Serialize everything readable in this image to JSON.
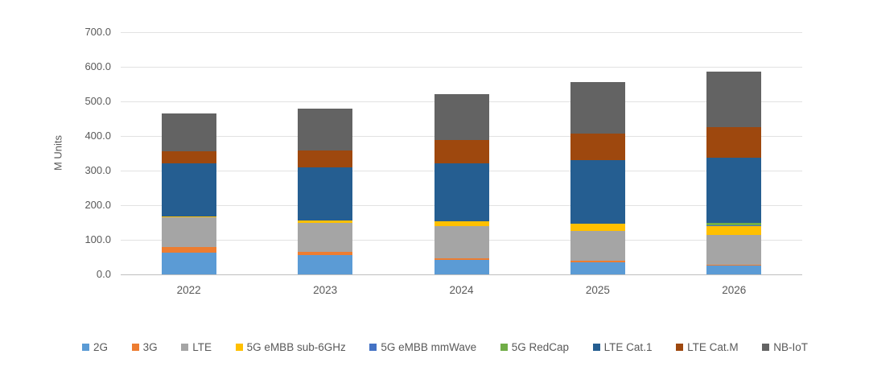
{
  "chart_data": {
    "type": "bar",
    "stacked": true,
    "title": "",
    "xlabel": "",
    "ylabel": "M Units",
    "ylim": [
      0,
      700
    ],
    "grid": true,
    "legend_position": "bottom",
    "categories": [
      "2022",
      "2023",
      "2024",
      "2025",
      "2026"
    ],
    "yticks": {
      "values": [
        0,
        100,
        200,
        300,
        400,
        500,
        600,
        700
      ],
      "labels": [
        "0.0",
        "100.0",
        "200.0",
        "300.0",
        "400.0",
        "500.0",
        "600.0",
        "700.0"
      ]
    },
    "series": [
      {
        "name": "2G",
        "color": "#5B9BD5",
        "values": [
          62,
          55,
          43,
          35,
          27
        ]
      },
      {
        "name": "3G",
        "color": "#ED7D31",
        "values": [
          17,
          9,
          4,
          5,
          2
        ]
      },
      {
        "name": "LTE",
        "color": "#A5A5A5",
        "values": [
          85,
          85,
          93,
          85,
          85
        ]
      },
      {
        "name": "5G eMBB sub-6GHz",
        "color": "#FFC000",
        "values": [
          4,
          7,
          13,
          21,
          27
        ]
      },
      {
        "name": "5G eMBB mmWave",
        "color": "#4472C4",
        "values": [
          0,
          0,
          0,
          0,
          2
        ]
      },
      {
        "name": "5G RedCap",
        "color": "#70AD47",
        "values": [
          0,
          0,
          0,
          0,
          5
        ]
      },
      {
        "name": "LTE Cat.1",
        "color": "#255E91",
        "values": [
          152,
          154,
          167,
          185,
          190
        ]
      },
      {
        "name": "LTE Cat.M",
        "color": "#9E480E",
        "values": [
          36,
          48,
          68,
          75,
          87
        ]
      },
      {
        "name": "NB-IoT",
        "color": "#636363",
        "values": [
          110,
          122,
          132,
          150,
          162
        ]
      }
    ],
    "totals": [
      466,
      480,
      520,
      556,
      587
    ]
  }
}
